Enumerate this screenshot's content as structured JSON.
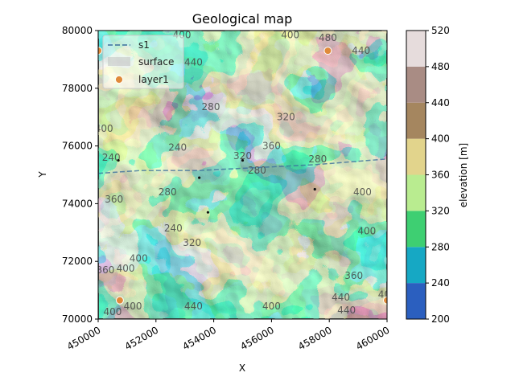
{
  "chart_data": {
    "type": "heatmap",
    "title": "Geological map",
    "xlabel": "X",
    "ylabel": "Y",
    "xlim": [
      450000,
      460000
    ],
    "ylim": [
      70000,
      80000
    ],
    "x_ticks": [
      "450000",
      "452000",
      "454000",
      "456000",
      "458000",
      "460000"
    ],
    "y_ticks": [
      "70000",
      "72000",
      "74000",
      "76000",
      "78000",
      "80000"
    ],
    "legend": {
      "placement": "top-left",
      "entries": [
        {
          "label": "s1",
          "style": "dashed-line",
          "color": "#3b6e9c"
        },
        {
          "label": "surface",
          "style": "patch",
          "color": "#bdbdbd"
        },
        {
          "label": "layer1",
          "style": "marker",
          "color": "#e08a3a"
        }
      ]
    },
    "colorbar": {
      "label": "elevation [m]",
      "ticks": [
        "200",
        "240",
        "280",
        "320",
        "360",
        "400",
        "440",
        "480",
        "520"
      ],
      "levels": [
        200,
        240,
        280,
        320,
        360,
        400,
        440,
        480,
        520
      ],
      "colors": [
        "#2b5fbf",
        "#16a8c4",
        "#3ecf72",
        "#b9ec90",
        "#e2d48c",
        "#a5865f",
        "#a98c84",
        "#e6dcdc"
      ]
    },
    "contour_labels": [
      {
        "text": "400",
        "x": 452900,
        "y": 79850
      },
      {
        "text": "400",
        "x": 456650,
        "y": 79850
      },
      {
        "text": "480",
        "x": 457950,
        "y": 79750
      },
      {
        "text": "440",
        "x": 459100,
        "y": 79300
      },
      {
        "text": "440",
        "x": 453300,
        "y": 78900
      },
      {
        "text": "280",
        "x": 453900,
        "y": 77350
      },
      {
        "text": "320",
        "x": 456500,
        "y": 77000
      },
      {
        "text": "400",
        "x": 450200,
        "y": 76600
      },
      {
        "text": "360",
        "x": 456000,
        "y": 76000
      },
      {
        "text": "240",
        "x": 452750,
        "y": 75950
      },
      {
        "text": "320",
        "x": 455000,
        "y": 75650
      },
      {
        "text": "240",
        "x": 450450,
        "y": 75600
      },
      {
        "text": "280",
        "x": 455500,
        "y": 75150
      },
      {
        "text": "280",
        "x": 457600,
        "y": 75550
      },
      {
        "text": "280",
        "x": 452400,
        "y": 74400
      },
      {
        "text": "400",
        "x": 459150,
        "y": 74400
      },
      {
        "text": "360",
        "x": 450550,
        "y": 74150
      },
      {
        "text": "240",
        "x": 452600,
        "y": 73150
      },
      {
        "text": "400",
        "x": 459300,
        "y": 73050
      },
      {
        "text": "320",
        "x": 453250,
        "y": 72650
      },
      {
        "text": "400",
        "x": 451400,
        "y": 72100
      },
      {
        "text": "400",
        "x": 450950,
        "y": 71750
      },
      {
        "text": "360",
        "x": 450250,
        "y": 71700
      },
      {
        "text": "360",
        "x": 458850,
        "y": 71500
      },
      {
        "text": "440",
        "x": 453300,
        "y": 70450
      },
      {
        "text": "400",
        "x": 456000,
        "y": 70450
      },
      {
        "text": "400",
        "x": 451200,
        "y": 70450
      },
      {
        "text": "440",
        "x": 458400,
        "y": 70750
      },
      {
        "text": "440",
        "x": 458600,
        "y": 70300
      },
      {
        "text": "40",
        "x": 459900,
        "y": 70850
      },
      {
        "text": "400",
        "x": 450500,
        "y": 70250
      }
    ],
    "section_line": {
      "name": "s1",
      "points": [
        [
          450000,
          75050
        ],
        [
          451500,
          75150
        ],
        [
          453500,
          75150
        ],
        [
          455500,
          75250
        ],
        [
          457500,
          75350
        ],
        [
          460000,
          75550
        ]
      ]
    },
    "layer1_points": [
      {
        "x": 450000,
        "y": 79300
      },
      {
        "x": 457950,
        "y": 79300
      },
      {
        "x": 450750,
        "y": 70650
      },
      {
        "x": 460000,
        "y": 70650
      }
    ],
    "small_points": [
      {
        "x": 450700,
        "y": 75500
      },
      {
        "x": 453500,
        "y": 74900
      },
      {
        "x": 455000,
        "y": 75500
      },
      {
        "x": 457500,
        "y": 74500
      },
      {
        "x": 453800,
        "y": 73700
      }
    ]
  }
}
